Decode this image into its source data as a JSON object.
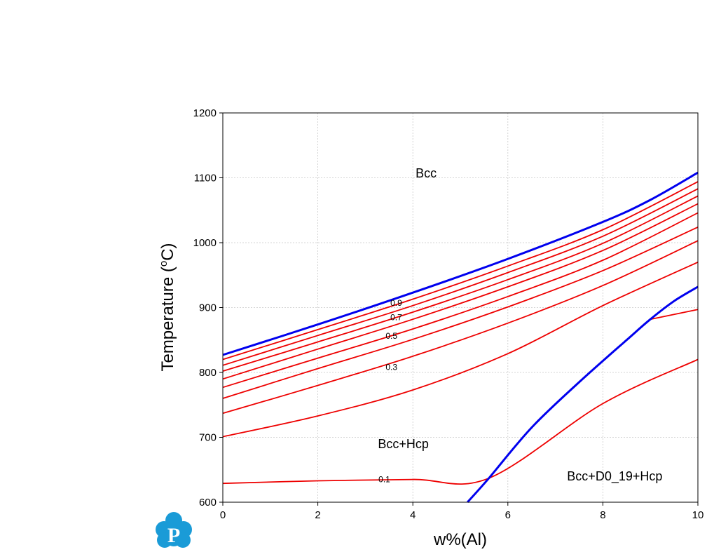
{
  "chart_data": {
    "type": "line",
    "xlabel": "w%(Al)",
    "ylabel_main": "Temperature (",
    "ylabel_sup": "o",
    "ylabel_end": "C)",
    "xlim": [
      0,
      10
    ],
    "ylim": [
      600,
      1200
    ],
    "xticks": [
      0,
      2,
      4,
      6,
      8,
      10
    ],
    "yticks": [
      600,
      700,
      800,
      900,
      1000,
      1100,
      1200
    ],
    "grid": true,
    "colors": {
      "phase_boundary": "#0000ee",
      "fraction_contour": "#ee0000"
    },
    "phase_boundaries": [
      {
        "points": [
          [
            0,
            827
          ],
          [
            2,
            874
          ],
          [
            4,
            923
          ],
          [
            6,
            975
          ],
          [
            8,
            1032
          ],
          [
            9,
            1066
          ],
          [
            10,
            1108
          ]
        ]
      },
      {
        "points": [
          [
            5.15,
            600
          ],
          [
            5.6,
            637
          ],
          [
            6.5,
            715
          ],
          [
            7.5,
            785
          ],
          [
            8.5,
            850
          ],
          [
            9,
            882
          ],
          [
            9.5,
            910
          ],
          [
            10,
            932
          ]
        ]
      }
    ],
    "contours": [
      {
        "label": "0.9",
        "points": [
          [
            0,
            820
          ],
          [
            2,
            866
          ],
          [
            4,
            913
          ],
          [
            6,
            964
          ],
          [
            8,
            1020
          ],
          [
            10,
            1094
          ]
        ]
      },
      {
        "label": "",
        "points": [
          [
            0,
            811
          ],
          [
            2,
            857
          ],
          [
            4,
            903
          ],
          [
            6,
            954
          ],
          [
            8,
            1010
          ],
          [
            10,
            1083
          ]
        ]
      },
      {
        "label": "0.7",
        "points": [
          [
            0,
            802
          ],
          [
            2,
            847
          ],
          [
            4,
            893
          ],
          [
            6,
            943
          ],
          [
            8,
            999
          ],
          [
            10,
            1072
          ]
        ]
      },
      {
        "label": "",
        "points": [
          [
            0,
            790
          ],
          [
            2,
            836
          ],
          [
            4,
            882
          ],
          [
            6,
            932
          ],
          [
            8,
            988
          ],
          [
            10,
            1060
          ]
        ]
      },
      {
        "label": "0.5",
        "points": [
          [
            0,
            777
          ],
          [
            2,
            822
          ],
          [
            4,
            867
          ],
          [
            6,
            917
          ],
          [
            8,
            973
          ],
          [
            10,
            1046
          ]
        ]
      },
      {
        "label": "",
        "points": [
          [
            0,
            760
          ],
          [
            2,
            806
          ],
          [
            4,
            851
          ],
          [
            6,
            901
          ],
          [
            8,
            957
          ],
          [
            10,
            1024
          ]
        ]
      },
      {
        "label": "0.3",
        "points": [
          [
            0,
            737
          ],
          [
            2,
            780
          ],
          [
            4,
            825
          ],
          [
            6,
            876
          ],
          [
            8,
            934
          ],
          [
            10,
            1003
          ]
        ]
      },
      {
        "label": "",
        "points": [
          [
            0,
            701
          ],
          [
            2,
            733
          ],
          [
            4,
            773
          ],
          [
            6,
            829
          ],
          [
            8,
            903
          ],
          [
            10,
            970
          ]
        ]
      },
      {
        "label": "0.1",
        "points": [
          [
            0,
            629
          ],
          [
            2,
            633
          ],
          [
            4,
            635
          ],
          [
            5.6,
            637
          ],
          [
            8,
            752
          ],
          [
            10,
            820
          ]
        ]
      },
      {
        "label": "",
        "points": [
          [
            9,
            882
          ],
          [
            10,
            897
          ]
        ]
      }
    ],
    "contour_label_positions": [
      {
        "text": "0.9",
        "x": 3.65,
        "y": 907
      },
      {
        "text": "0.7",
        "x": 3.65,
        "y": 885
      },
      {
        "text": "0.5",
        "x": 3.55,
        "y": 856
      },
      {
        "text": "0.3",
        "x": 3.55,
        "y": 808
      },
      {
        "text": "0.1",
        "x": 3.4,
        "y": 635
      }
    ],
    "region_labels": [
      {
        "text": "Bcc",
        "x": 4.28,
        "y": 1107
      },
      {
        "text": "Bcc+Hcp",
        "x": 3.8,
        "y": 690
      },
      {
        "text": "Bcc+D0_19+Hcp",
        "x": 8.25,
        "y": 640
      }
    ]
  },
  "logo": {
    "letter": "P",
    "color": "#1a9bd7"
  }
}
